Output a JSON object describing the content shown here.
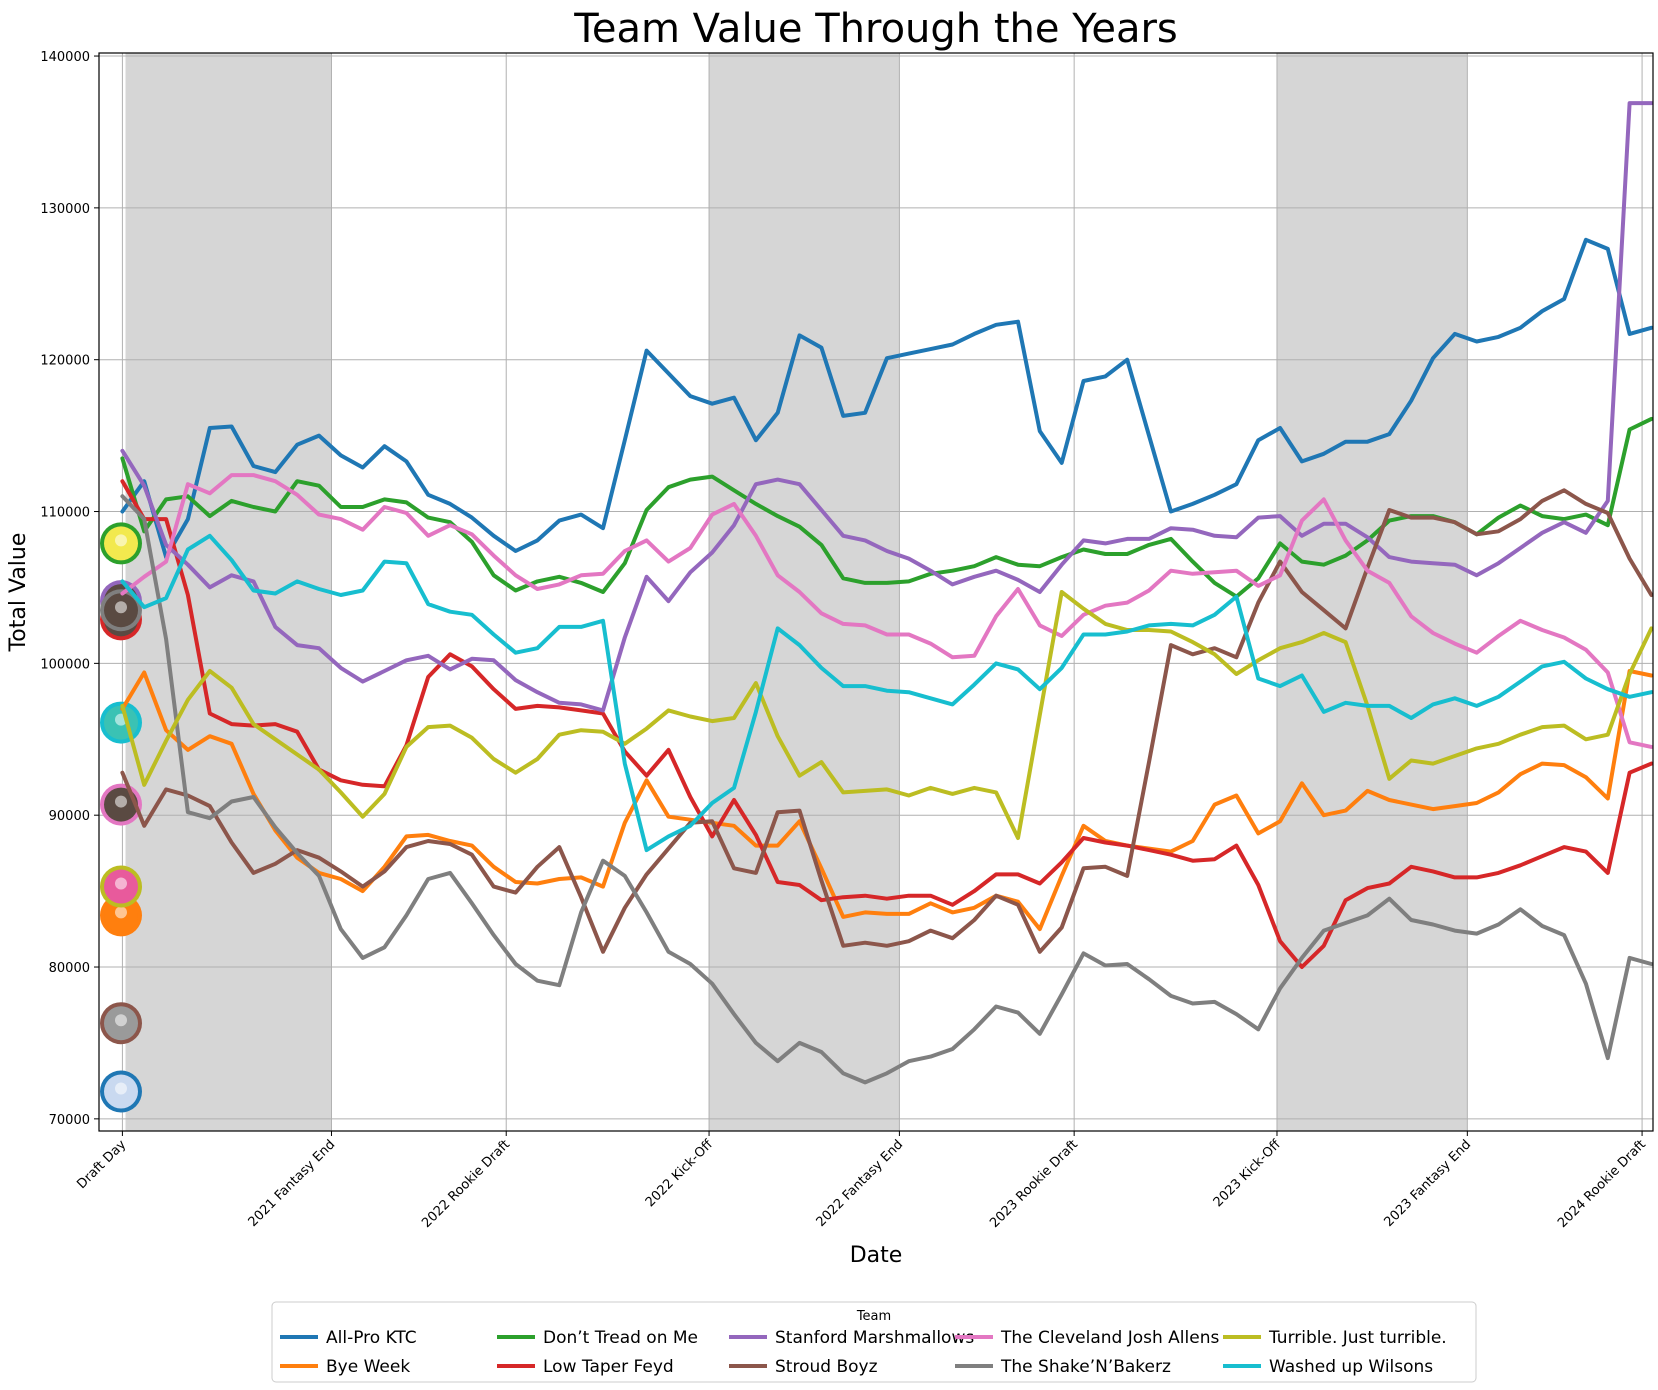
{
  "chart_data": {
    "type": "line",
    "title": "Team Value Through the Years",
    "xlabel": "Date",
    "ylabel": "Total Value",
    "ylim": [
      69200,
      140200
    ],
    "yticks": [
      70000,
      80000,
      90000,
      100000,
      110000,
      120000,
      130000,
      140000
    ],
    "grid": true,
    "legend": {
      "title": "Team",
      "placement": "bottom-center, 5 columns"
    },
    "x_axis": {
      "type": "date",
      "range": [
        "2021-08-13",
        "2024-05-05"
      ]
    },
    "milestones": [
      {
        "label": "Draft Day",
        "date": "2021-08-28"
      },
      {
        "label": "2021 Fantasy End",
        "date": "2022-01-09"
      },
      {
        "label": "2022 Rookie Draft",
        "date": "2022-05-01"
      },
      {
        "label": "2022 Kick-Off",
        "date": "2022-09-08"
      },
      {
        "label": "2022 Fantasy End",
        "date": "2023-01-08"
      },
      {
        "label": "2023 Rookie Draft",
        "date": "2023-04-30"
      },
      {
        "label": "2023 Kick-Off",
        "date": "2023-09-07"
      },
      {
        "label": "2023 Fantasy End",
        "date": "2024-01-07"
      },
      {
        "label": "2024 Rookie Draft",
        "date": "2024-04-28"
      }
    ],
    "season_bands": [
      [
        "2021-08-30",
        "2022-01-09"
      ],
      [
        "2022-09-08",
        "2023-01-08"
      ],
      [
        "2023-09-07",
        "2024-01-07"
      ]
    ],
    "x": [
      "2021-08-28",
      "2021-09-11",
      "2021-09-25",
      "2021-10-09",
      "2021-10-23",
      "2021-11-06",
      "2021-11-20",
      "2021-12-04",
      "2021-12-18",
      "2022-01-01",
      "2022-01-15",
      "2022-01-29",
      "2022-02-12",
      "2022-02-26",
      "2022-03-12",
      "2022-03-26",
      "2022-04-09",
      "2022-04-23",
      "2022-05-07",
      "2022-05-21",
      "2022-06-04",
      "2022-06-18",
      "2022-07-02",
      "2022-07-16",
      "2022-07-30",
      "2022-08-13",
      "2022-08-27",
      "2022-09-10",
      "2022-09-24",
      "2022-10-08",
      "2022-10-22",
      "2022-11-05",
      "2022-11-19",
      "2022-12-03",
      "2022-12-17",
      "2022-12-31",
      "2023-01-14",
      "2023-01-28",
      "2023-02-11",
      "2023-02-25",
      "2023-03-11",
      "2023-03-25",
      "2023-04-08",
      "2023-04-22",
      "2023-05-06",
      "2023-05-20",
      "2023-06-03",
      "2023-06-17",
      "2023-07-01",
      "2023-07-15",
      "2023-07-29",
      "2023-08-12",
      "2023-08-26",
      "2023-09-09",
      "2023-09-23",
      "2023-10-07",
      "2023-10-21",
      "2023-11-04",
      "2023-11-18",
      "2023-12-02",
      "2023-12-16",
      "2023-12-30",
      "2024-01-13",
      "2024-01-27",
      "2024-02-10",
      "2024-02-24",
      "2024-03-09",
      "2024-03-23",
      "2024-04-06",
      "2024-04-20",
      "2024-05-04"
    ],
    "series": [
      {
        "name": "All-Pro KTC",
        "color": "#1f77b4",
        "values": [
          110000,
          112000,
          107000,
          109500,
          115500,
          115600,
          113000,
          112600,
          114400,
          115000,
          113700,
          112900,
          114300,
          113300,
          111100,
          110500,
          109600,
          108400,
          107400,
          108100,
          109400,
          109800,
          108900,
          114700,
          120600,
          119100,
          117600,
          117100,
          117500,
          114700,
          116500,
          121600,
          120800,
          116300,
          116500,
          120100,
          120400,
          120700,
          121000,
          121700,
          122300,
          122500,
          115300,
          113200,
          118600,
          118900,
          120000,
          115000,
          110000,
          110500,
          111100,
          111800,
          114700,
          115500,
          113300,
          113800,
          114600,
          114600,
          115100,
          117300,
          120100,
          121700,
          121200,
          121500,
          122100,
          123200,
          124000,
          127900,
          127300,
          121700,
          122100
        ]
      },
      {
        "name": "Bye Week",
        "color": "#ff7f0e",
        "values": [
          97000,
          99400,
          95600,
          94300,
          95200,
          94700,
          91400,
          89000,
          87200,
          86200,
          85800,
          85000,
          86600,
          88600,
          88700,
          88300,
          88000,
          86600,
          85600,
          85500,
          85800,
          85900,
          85300,
          89500,
          92300,
          89900,
          89700,
          89500,
          89300,
          88000,
          88000,
          89600,
          86500,
          83300,
          83600,
          83500,
          83500,
          84200,
          83600,
          83900,
          84700,
          84300,
          82500,
          86000,
          89300,
          88300,
          88000,
          87800,
          87600,
          88300,
          90700,
          91300,
          88800,
          89600,
          92100,
          90000,
          90300,
          91600,
          91000,
          90700,
          90400,
          90600,
          90800,
          91500,
          92700,
          93400,
          93300,
          92500,
          91100,
          99500,
          99200
        ]
      },
      {
        "name": "Don’t Tread on Me",
        "color": "#2ca02c",
        "values": [
          113500,
          108700,
          110800,
          111000,
          109700,
          110700,
          110300,
          110000,
          112000,
          111700,
          110300,
          110300,
          110800,
          110600,
          109600,
          109300,
          108000,
          105800,
          104800,
          105400,
          105700,
          105300,
          104700,
          106600,
          110100,
          111600,
          112100,
          112300,
          111400,
          110500,
          109700,
          109000,
          107800,
          105600,
          105300,
          105300,
          105400,
          105900,
          106100,
          106400,
          107000,
          106500,
          106400,
          107000,
          107500,
          107200,
          107200,
          107800,
          108200,
          106700,
          105300,
          104400,
          105600,
          107900,
          106700,
          106500,
          107100,
          108100,
          109400,
          109700,
          109700,
          109300,
          108500,
          109600,
          110400,
          109700,
          109500,
          109800,
          109100,
          115400,
          116100
        ]
      },
      {
        "name": "Low Taper Feyd",
        "color": "#d62728",
        "values": [
          112000,
          109500,
          109500,
          104500,
          96700,
          96000,
          95900,
          96000,
          95500,
          93000,
          92300,
          92000,
          91900,
          94600,
          99100,
          100600,
          99800,
          98300,
          97000,
          97200,
          97100,
          96900,
          96700,
          94200,
          92600,
          94300,
          91200,
          88600,
          91000,
          88700,
          85600,
          85400,
          84400,
          84600,
          84700,
          84500,
          84700,
          84700,
          84100,
          85000,
          86100,
          86100,
          85500,
          86900,
          88500,
          88200,
          88000,
          87700,
          87400,
          87000,
          87100,
          88000,
          85400,
          81700,
          80000,
          81400,
          84400,
          85200,
          85500,
          86600,
          86300,
          85900,
          85900,
          86200,
          86700,
          87300,
          87900,
          87600,
          86200,
          92800,
          93400
        ]
      },
      {
        "name": "Stanford Marshmallows",
        "color": "#9467bd",
        "values": [
          114000,
          111700,
          107800,
          106500,
          105000,
          105800,
          105400,
          102400,
          101200,
          101000,
          99700,
          98800,
          99500,
          100200,
          100500,
          99600,
          100300,
          100200,
          98900,
          98100,
          97400,
          97300,
          96900,
          101700,
          105700,
          104100,
          106000,
          107300,
          109100,
          111800,
          112100,
          111800,
          110100,
          108400,
          108100,
          107400,
          106900,
          106100,
          105200,
          105700,
          106100,
          105500,
          104700,
          106500,
          108100,
          107900,
          108200,
          108200,
          108900,
          108800,
          108400,
          108300,
          109600,
          109700,
          108400,
          109200,
          109200,
          108300,
          107000,
          106700,
          106600,
          106500,
          105800,
          106600,
          107600,
          108600,
          109300,
          108600,
          110700,
          136900,
          136900
        ]
      },
      {
        "name": "Stroud Boyz",
        "color": "#8c564b",
        "values": [
          92800,
          89300,
          91700,
          91300,
          90600,
          88200,
          86200,
          86800,
          87700,
          87200,
          86300,
          85300,
          86300,
          87900,
          88300,
          88100,
          87400,
          85300,
          84900,
          86600,
          87900,
          84600,
          81000,
          83900,
          86100,
          87800,
          89500,
          89600,
          86500,
          86200,
          90200,
          90300,
          85700,
          81400,
          81600,
          81400,
          81700,
          82400,
          81900,
          83100,
          84700,
          84100,
          81000,
          82600,
          86500,
          86600,
          86000,
          93500,
          101200,
          100600,
          101000,
          100400,
          104000,
          106700,
          104700,
          103500,
          102300,
          106300,
          110100,
          109600,
          109600,
          109300,
          108500,
          108700,
          109500,
          110700,
          111400,
          110500,
          109900,
          106900,
          104500
        ]
      },
      {
        "name": "The Cleveland Josh Allens",
        "color": "#e377c2",
        "values": [
          104600,
          105700,
          106700,
          111800,
          111200,
          112400,
          112400,
          112000,
          111100,
          109800,
          109500,
          108800,
          110300,
          109900,
          108400,
          109100,
          108500,
          107100,
          105800,
          104900,
          105200,
          105800,
          105900,
          107400,
          108100,
          106700,
          107600,
          109800,
          110500,
          108400,
          105800,
          104700,
          103300,
          102600,
          102500,
          101900,
          101900,
          101300,
          100400,
          100500,
          103100,
          104900,
          102500,
          101800,
          103200,
          103800,
          104000,
          104800,
          106100,
          105900,
          106000,
          106100,
          105100,
          105800,
          109400,
          110800,
          108100,
          106100,
          105300,
          103100,
          102000,
          101300,
          100700,
          101800,
          102800,
          102200,
          101700,
          100900,
          99400,
          94800,
          94500
        ]
      },
      {
        "name": "The Shake’N’Bakerz",
        "color": "#7f7f7f",
        "values": [
          111000,
          109500,
          101600,
          90200,
          89800,
          90900,
          91200,
          89200,
          87500,
          86000,
          82500,
          80600,
          81300,
          83400,
          85800,
          86200,
          84200,
          82100,
          80200,
          79100,
          78800,
          83600,
          87000,
          86000,
          83600,
          81000,
          80200,
          78900,
          76900,
          75000,
          73800,
          75000,
          74400,
          73000,
          72400,
          73000,
          73800,
          74100,
          74600,
          75900,
          77400,
          77000,
          75600,
          78200,
          80900,
          80100,
          80200,
          79200,
          78100,
          77600,
          77700,
          76900,
          75900,
          78600,
          80600,
          82400,
          82900,
          83400,
          84500,
          83100,
          82800,
          82400,
          82200,
          82800,
          83800,
          82700,
          82100,
          78900,
          74000,
          80600,
          80200
        ]
      },
      {
        "name": "Turrible. Just turrible.",
        "color": "#bcbd22",
        "values": [
          97200,
          92000,
          94900,
          97600,
          99500,
          98400,
          96000,
          95000,
          94000,
          93000,
          91500,
          89900,
          91400,
          94500,
          95800,
          95900,
          95100,
          93700,
          92800,
          93700,
          95300,
          95600,
          95500,
          94700,
          95700,
          96900,
          96500,
          96200,
          96400,
          98700,
          95200,
          92600,
          93500,
          91500,
          91600,
          91700,
          91300,
          91800,
          91400,
          91800,
          91500,
          88500,
          96600,
          104700,
          103600,
          102600,
          102200,
          102200,
          102100,
          101400,
          100600,
          99300,
          100200,
          101000,
          101400,
          102000,
          101400,
          97200,
          92400,
          93600,
          93400,
          93900,
          94400,
          94700,
          95300,
          95800,
          95900,
          95000,
          95300,
          99300,
          102300
        ]
      },
      {
        "name": "Washed up Wilsons",
        "color": "#17becf",
        "values": [
          105400,
          103700,
          104300,
          107500,
          108400,
          106800,
          104800,
          104600,
          105400,
          104900,
          104500,
          104800,
          106700,
          106600,
          103900,
          103400,
          103200,
          101900,
          100700,
          101000,
          102400,
          102400,
          102800,
          93400,
          87700,
          88600,
          89300,
          90800,
          91800,
          96800,
          102300,
          101200,
          99700,
          98500,
          98500,
          98200,
          98100,
          97700,
          97300,
          98600,
          100000,
          99600,
          98300,
          99700,
          101900,
          101900,
          102100,
          102500,
          102600,
          102500,
          103200,
          104400,
          99000,
          98500,
          99200,
          96800,
          97400,
          97200,
          97200,
          96400,
          97300,
          97700,
          97200,
          97800,
          98800,
          99800,
          100100,
          99000,
          98300,
          97800,
          98100
        ]
      }
    ],
    "avatars": [
      {
        "team": "All-Pro KTC",
        "value": 71800,
        "icon": "arrows-logo-icon"
      },
      {
        "team": "Bye Week",
        "value": 83400,
        "icon": "robot-mask-icon"
      },
      {
        "team": "Don’t Tread on Me",
        "value": 107900,
        "icon": "gadsden-snake-icon"
      },
      {
        "team": "Low Taper Feyd",
        "value": 102900,
        "icon": "portrait-photo-icon"
      },
      {
        "team": "Stanford Marshmallows",
        "value": 104100,
        "icon": "portrait-photo-icon"
      },
      {
        "team": "Stroud Boyz",
        "value": 76300,
        "icon": "landscape-photo-icon"
      },
      {
        "team": "The Cleveland Josh Allens",
        "value": 90700,
        "icon": "portrait-photo-icon"
      },
      {
        "team": "Turrible. Just turrible.",
        "value": 85300,
        "icon": "comic-logo-icon"
      },
      {
        "team": "Washed up Wilsons",
        "value": 96100,
        "icon": "robot-face-icon"
      },
      {
        "team": "The Shake’N’Bakerz",
        "value": 103500,
        "icon": "portrait-photo-icon"
      }
    ]
  }
}
